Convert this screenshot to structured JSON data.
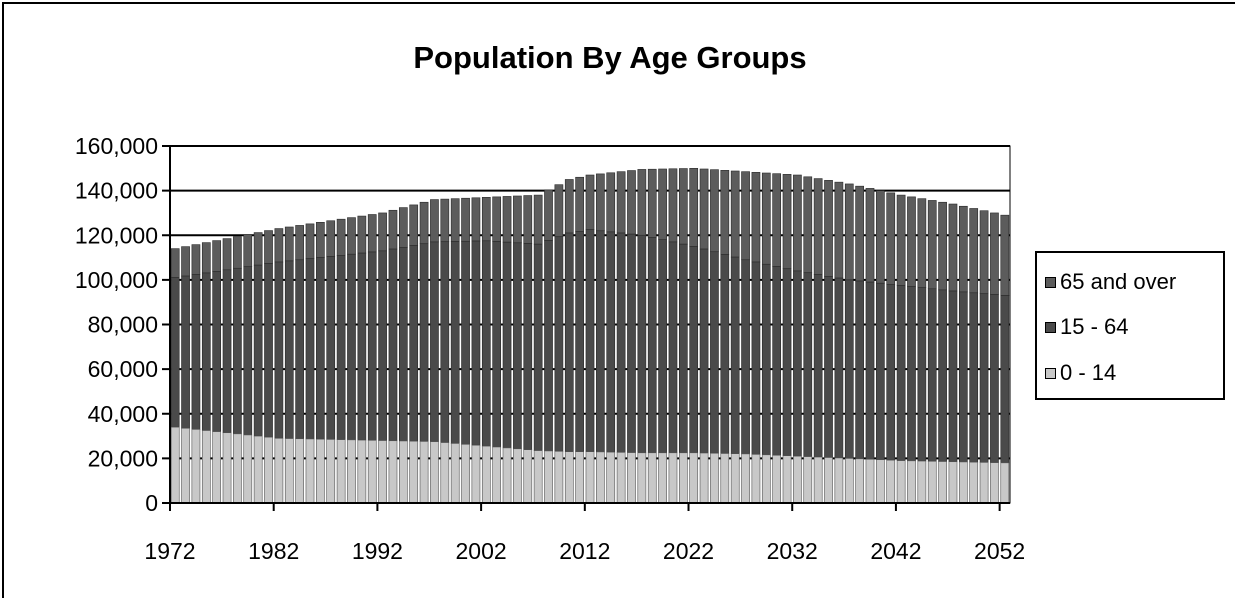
{
  "chart_data": {
    "type": "bar",
    "stacked": true,
    "title": "Population By Age Groups",
    "xlabel": "",
    "ylabel": "",
    "ylim": [
      0,
      160000
    ],
    "y_ticks": [
      0,
      20000,
      40000,
      60000,
      80000,
      100000,
      120000,
      140000,
      160000
    ],
    "y_tick_labels": [
      "0",
      "20,000",
      "40,000",
      "60,000",
      "80,000",
      "100,000",
      "120,000",
      "140,000",
      "160,000"
    ],
    "x_tick_labels": [
      "1972",
      "1982",
      "1992",
      "2002",
      "2012",
      "2022",
      "2032",
      "2042",
      "2052"
    ],
    "x_tick_years": [
      1972,
      1982,
      1992,
      2002,
      2012,
      2022,
      2032,
      2042,
      2052
    ],
    "grid": "horizontal",
    "legend_position": "right",
    "legend": [
      "65 and over",
      "15 - 64",
      "0 - 14"
    ],
    "colors": {
      "0 - 14": "#c8c8c8",
      "15 - 64": "#4a4a4a",
      "65 and over": "#5c5c5c",
      "bar_outline": "#2a2a2a"
    },
    "anchor_points": {
      "years": [
        1972,
        1982,
        1992,
        1997,
        2002,
        2007,
        2010,
        2012,
        2017,
        2022,
        2027,
        2032,
        2037,
        2042,
        2047,
        2052
      ],
      "age_0_14": [
        34000,
        29000,
        28000,
        27500,
        25500,
        23500,
        23000,
        23000,
        22500,
        22500,
        22000,
        21000,
        20000,
        19000,
        18500,
        18000
      ],
      "age_15_64_cumulative": [
        101000,
        108000,
        113000,
        117000,
        117500,
        116000,
        121000,
        122500,
        120000,
        115000,
        109000,
        104000,
        100000,
        97500,
        95000,
        93000
      ],
      "total": [
        114000,
        123000,
        130000,
        136000,
        137000,
        138000,
        145000,
        147000,
        149500,
        150000,
        148500,
        147000,
        143000,
        138000,
        134000,
        129000
      ]
    },
    "series": [
      {
        "name": "0 - 14"
      },
      {
        "name": "15 - 64"
      },
      {
        "name": "65 and over"
      }
    ]
  }
}
